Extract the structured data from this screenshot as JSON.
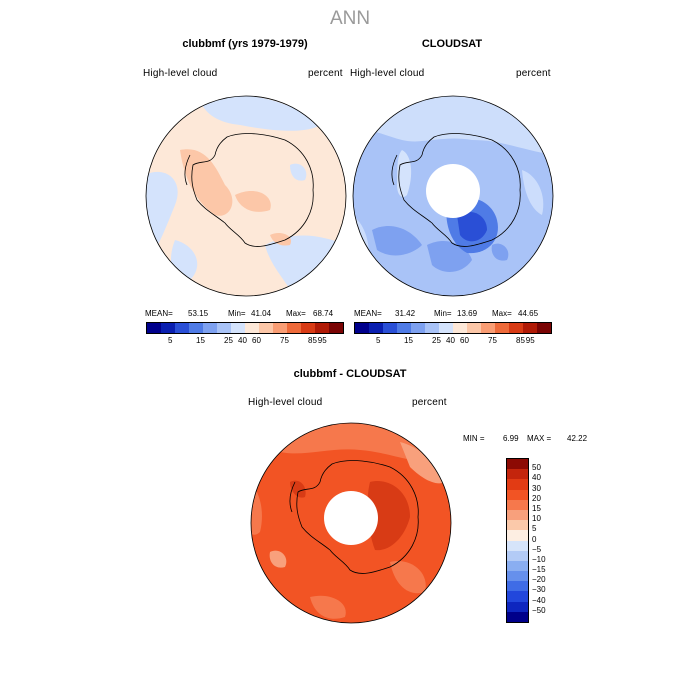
{
  "figure": {
    "title": "ANN",
    "left_panel": {
      "title": "clubbmf (yrs 1979-1979)",
      "variable": "High-level  cloud",
      "units": "percent",
      "stats": {
        "mean_label": "MEAN=",
        "mean": "53.15",
        "min_label": "Min=",
        "min": "41.04",
        "max_label": "Max=",
        "max": "68.74"
      }
    },
    "right_panel": {
      "title": "CLOUDSAT",
      "variable": "High-level  cloud",
      "units": "percent",
      "stats": {
        "mean_label": "MEAN=",
        "mean": "31.42",
        "min_label": "Min=",
        "min": "13.69",
        "max_label": "Max=",
        "max": "44.65"
      }
    },
    "diff_panel": {
      "title": "clubbmf - CLOUDSAT",
      "variable": "High-level  cloud",
      "units": "percent",
      "min_label": "MIN =",
      "min": "6.99",
      "max_label": "MAX =",
      "max": "42.22"
    }
  },
  "chart_data": [
    {
      "type": "heatmap",
      "projection": "south-polar-stereographic",
      "title": "clubbmf (yrs 1979-1979)",
      "field": "High-level cloud",
      "units": "percent",
      "mean": 53.15,
      "min": 41.04,
      "max": 68.74,
      "colorbar_levels": [
        5,
        15,
        25,
        40,
        60,
        75,
        85,
        95
      ],
      "colorbar_tick_labels": [
        "5",
        "15",
        "25",
        "40",
        "60",
        "75",
        "85",
        "95"
      ],
      "colors": [
        "#00008c",
        "#0a1fb0",
        "#2a4fd6",
        "#4f7be6",
        "#7ea1f0",
        "#a9c3f7",
        "#d4e3fc",
        "#fde8d8",
        "#fcc7a8",
        "#f99d74",
        "#ee6a3a",
        "#d83b15",
        "#b01a06",
        "#7a0404"
      ],
      "dominant_value_range": [
        50,
        60
      ]
    },
    {
      "type": "heatmap",
      "projection": "south-polar-stereographic",
      "title": "CLOUDSAT",
      "field": "High-level cloud",
      "units": "percent",
      "mean": 31.42,
      "min": 13.69,
      "max": 44.65,
      "colorbar_levels": [
        5,
        15,
        25,
        40,
        60,
        75,
        85,
        95
      ],
      "colorbar_tick_labels": [
        "5",
        "15",
        "25",
        "40",
        "60",
        "75",
        "85",
        "95"
      ],
      "dominant_value_range": [
        25,
        40
      ],
      "missing_region": "polar cap"
    },
    {
      "type": "heatmap",
      "projection": "south-polar-stereographic",
      "title": "clubbmf - CLOUDSAT",
      "field": "High-level cloud",
      "units": "percent",
      "min": 6.99,
      "max": 42.22,
      "colorbar_levels": [
        -50,
        -40,
        -30,
        -20,
        -15,
        -10,
        -5,
        0,
        5,
        10,
        15,
        20,
        30,
        40,
        50
      ],
      "colorbar_tick_labels": [
        "50",
        "40",
        "30",
        "20",
        "15",
        "10",
        "5",
        "0",
        "−5",
        "−10",
        "−15",
        "−20",
        "−30",
        "−40",
        "−50"
      ],
      "colors_top_to_bottom": [
        "#8c0a04",
        "#c4250c",
        "#e23b14",
        "#f25424",
        "#f6784c",
        "#f8a07c",
        "#fbc9aa",
        "#fdeee2",
        "#d6e4fa",
        "#b3cbf6",
        "#8aaef1",
        "#6690ec",
        "#3f6ce6",
        "#2247dc",
        "#0e26bf",
        "#00008a"
      ],
      "dominant_value_range": [
        20,
        30
      ],
      "missing_region": "polar cap"
    }
  ],
  "colors": {
    "neutral_pos": "#fde8d8",
    "light_blue": "#d4e3fc",
    "mid_blue": "#a9c3f7",
    "blue": "#7ea1f0",
    "deep_blue": "#2a4fd6",
    "diff_main": "#f25424",
    "diff_light": "#f6784c",
    "diff_dark": "#d83b15",
    "suptitle_gray": "#9a9a9a"
  }
}
